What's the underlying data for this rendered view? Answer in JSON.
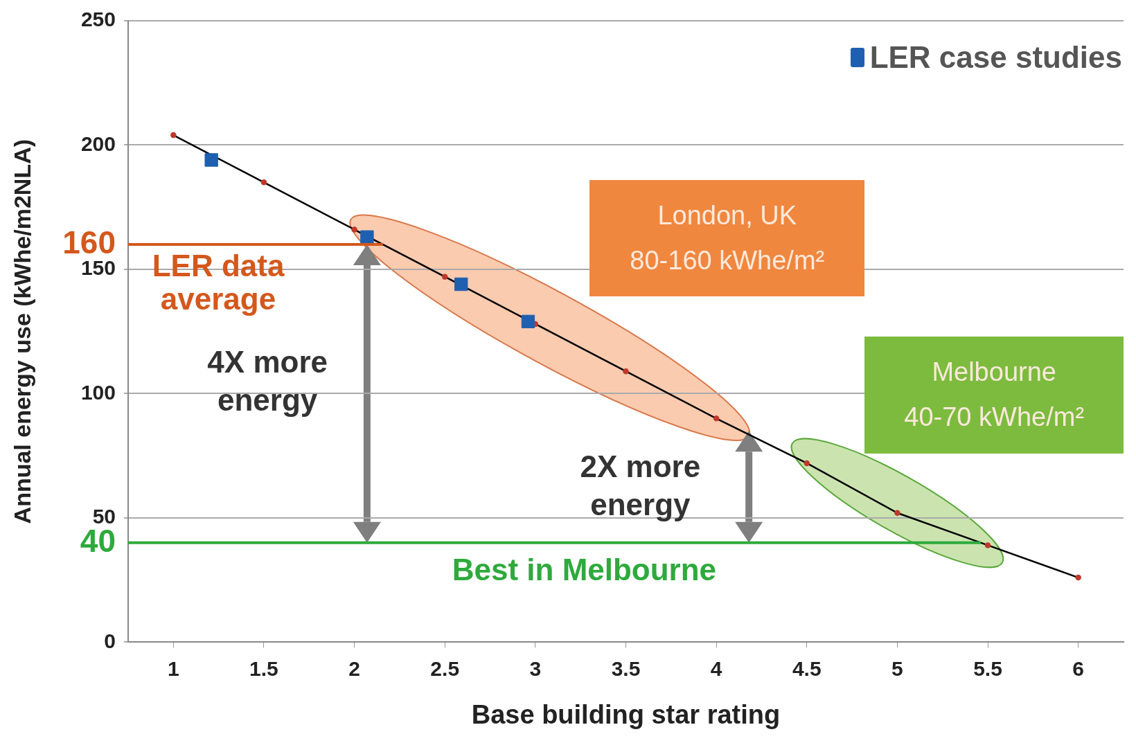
{
  "chart_data": {
    "type": "line",
    "xlabel": "Base building star rating",
    "ylabel": "Annual energy use (kWhe/m2NLA)",
    "xlim": [
      0.75,
      6.25
    ],
    "xticks": [
      1,
      1.5,
      2,
      2.5,
      3,
      3.5,
      4,
      4.5,
      5,
      5.5,
      6
    ],
    "ylim": [
      0,
      250
    ],
    "yticks": [
      0,
      50,
      100,
      150,
      200,
      250
    ],
    "grid": "y",
    "legend": "top right",
    "marker": "circle",
    "series": [
      {
        "color": "#000000",
        "colors": [
          "#c0392b",
          "#c0392b",
          "#c0392b",
          "#c0392b",
          "#c0392b",
          "#c0392b",
          "#c0392b",
          "#c0392b",
          "#c0392b",
          "#c0392b",
          "#c0392b"
        ],
        "x": [
          1,
          1.5,
          2,
          2.5,
          3,
          3.5,
          4,
          4.5,
          5,
          5.5,
          6
        ],
        "values": [
          204,
          185,
          166,
          147,
          128,
          109,
          90,
          72,
          52,
          39,
          26
        ]
      },
      {
        "type": "scatter",
        "name": "LER case studies",
        "color": "#1f5fb0",
        "marker": "square",
        "x": [
          1.21,
          2.07,
          2.59,
          2.96
        ],
        "values": [
          194,
          163,
          144,
          129
        ]
      }
    ],
    "ref_lines": [
      {
        "axis": "y",
        "value": 160,
        "label": "LER data average",
        "color": "#d4581c"
      },
      {
        "axis": "y",
        "value": 40,
        "label": "Best in Melbourne",
        "color": "#2eaa3c"
      }
    ],
    "annotations": [
      "160",
      "40",
      "London, UK",
      "80-160 kWhe/m²",
      "Melbourne",
      "40-70 kWhe/m²",
      "4X more energy",
      "2X more energy"
    ]
  }
}
